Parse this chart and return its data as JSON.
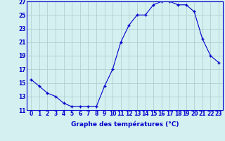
{
  "hours": [
    0,
    1,
    2,
    3,
    4,
    5,
    6,
    7,
    8,
    9,
    10,
    11,
    12,
    13,
    14,
    15,
    16,
    17,
    18,
    19,
    20,
    21,
    22,
    23
  ],
  "temps": [
    15.5,
    14.5,
    13.5,
    13.0,
    12.0,
    11.5,
    11.5,
    11.5,
    11.5,
    14.5,
    17.0,
    21.0,
    23.5,
    25.0,
    25.0,
    26.5,
    27.0,
    27.0,
    26.5,
    26.5,
    25.5,
    21.5,
    19.0,
    18.0
  ],
  "xlabel": "Graphe des températures (°C)",
  "ylim": [
    11,
    27
  ],
  "xlim_min": -0.5,
  "xlim_max": 23.5,
  "yticks": [
    11,
    13,
    15,
    17,
    19,
    21,
    23,
    25,
    27
  ],
  "xticks": [
    0,
    1,
    2,
    3,
    4,
    5,
    6,
    7,
    8,
    9,
    10,
    11,
    12,
    13,
    14,
    15,
    16,
    17,
    18,
    19,
    20,
    21,
    22,
    23
  ],
  "line_color": "#0000cc",
  "marker": "+",
  "marker_size": 3.5,
  "marker_linewidth": 1.0,
  "bg_color": "#d4f0f0",
  "grid_color": "#aacccc",
  "axis_color": "#0000cc",
  "tick_color": "#0000cc",
  "label_color": "#0000cc",
  "font_size_ticks": 5.5,
  "font_size_label": 6.5,
  "linewidth": 0.8
}
